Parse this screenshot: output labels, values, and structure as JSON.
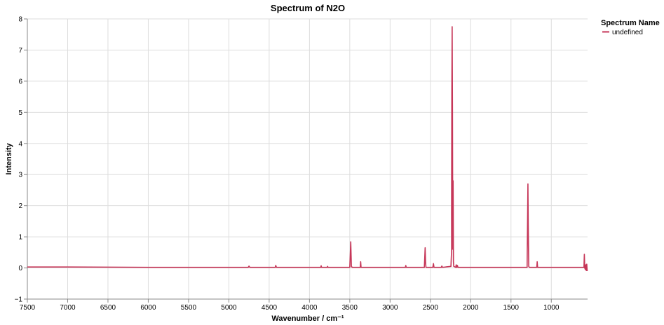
{
  "chart_data": {
    "type": "line",
    "title": "Spectrum of N2O",
    "xlabel": "Wavenumber / cm⁻¹",
    "ylabel": "Intensity",
    "xlim": [
      7500,
      550
    ],
    "ylim": [
      -1,
      8
    ],
    "x_reversed": true,
    "grid": true,
    "x_ticks": [
      7500,
      7000,
      6500,
      6000,
      5500,
      5000,
      4500,
      4000,
      3500,
      3000,
      2500,
      2000,
      1500,
      1000
    ],
    "x_tick_labels": [
      "7500",
      "7000",
      "6500",
      "6000",
      "5500",
      "5000",
      "4500",
      "4000",
      "3500",
      "3000",
      "2500",
      "2000",
      "1500",
      "1000"
    ],
    "y_ticks": [
      -1,
      0,
      1,
      2,
      3,
      4,
      5,
      6,
      7,
      8
    ],
    "y_tick_labels": [
      "−1",
      "0",
      "1",
      "2",
      "3",
      "4",
      "5",
      "6",
      "7",
      "8"
    ],
    "legend": {
      "title": "Spectrum Name",
      "position": "top-right"
    },
    "series": [
      {
        "name": "undefined",
        "color": "#c63658",
        "points": [
          [
            7500,
            0.03
          ],
          [
            7000,
            0.03
          ],
          [
            6000,
            0.02
          ],
          [
            5000,
            0.02
          ],
          [
            4760,
            0.02
          ],
          [
            4750,
            0.06
          ],
          [
            4740,
            0.02
          ],
          [
            4425,
            0.02
          ],
          [
            4418,
            0.08
          ],
          [
            4410,
            0.02
          ],
          [
            3860,
            0.02
          ],
          [
            3855,
            0.07
          ],
          [
            3850,
            0.02
          ],
          [
            3780,
            0.02
          ],
          [
            3775,
            0.05
          ],
          [
            3770,
            0.02
          ],
          [
            3500,
            0.02
          ],
          [
            3488,
            0.84
          ],
          [
            3480,
            0.05
          ],
          [
            3470,
            0.02
          ],
          [
            3370,
            0.02
          ],
          [
            3365,
            0.2
          ],
          [
            3360,
            0.02
          ],
          [
            2810,
            0.02
          ],
          [
            2805,
            0.08
          ],
          [
            2800,
            0.02
          ],
          [
            2575,
            0.02
          ],
          [
            2565,
            0.65
          ],
          [
            2560,
            0.2
          ],
          [
            2555,
            0.02
          ],
          [
            2470,
            0.02
          ],
          [
            2462,
            0.14
          ],
          [
            2455,
            0.02
          ],
          [
            2365,
            0.02
          ],
          [
            2358,
            0.06
          ],
          [
            2350,
            0.02
          ],
          [
            2245,
            0.05
          ],
          [
            2238,
            0.5
          ],
          [
            2234,
            5.6
          ],
          [
            2230,
            7.75
          ],
          [
            2226,
            5.0
          ],
          [
            2222,
            0.6
          ],
          [
            2218,
            2.8
          ],
          [
            2214,
            0.2
          ],
          [
            2210,
            0.05
          ],
          [
            2185,
            0.02
          ],
          [
            2180,
            0.1
          ],
          [
            2172,
            0.02
          ],
          [
            2165,
            0.08
          ],
          [
            2158,
            0.02
          ],
          [
            1600,
            0.02
          ],
          [
            1300,
            0.02
          ],
          [
            1290,
            2.7
          ],
          [
            1286,
            1.4
          ],
          [
            1280,
            0.05
          ],
          [
            1272,
            0.02
          ],
          [
            1180,
            0.02
          ],
          [
            1175,
            0.2
          ],
          [
            1170,
            0.02
          ],
          [
            1000,
            0.02
          ],
          [
            700,
            0.02
          ],
          [
            595,
            0.02
          ],
          [
            590,
            0.44
          ],
          [
            585,
            0.0
          ],
          [
            578,
            -0.05
          ],
          [
            572,
            0.1
          ],
          [
            566,
            -0.08
          ],
          [
            560,
            0.12
          ],
          [
            555,
            -0.1
          ]
        ]
      }
    ]
  }
}
